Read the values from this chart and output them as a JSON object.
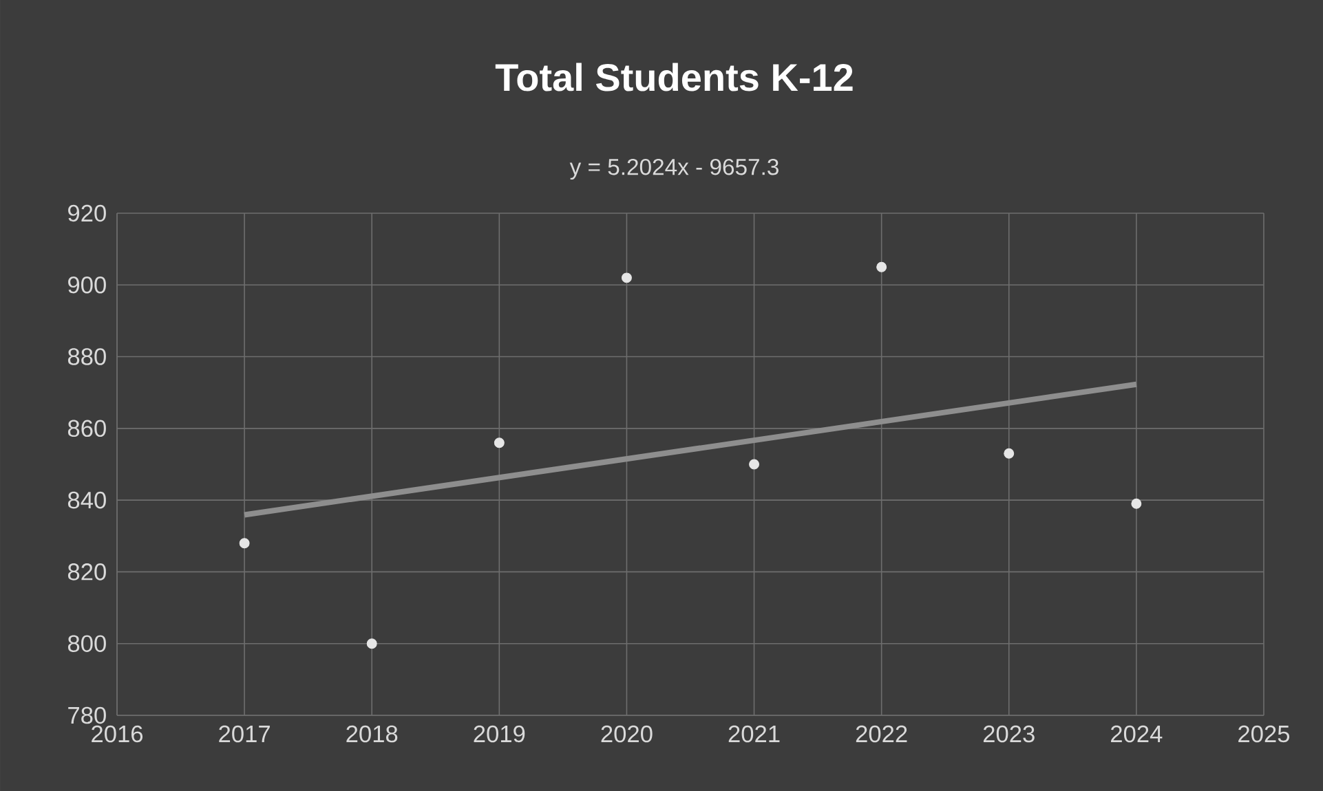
{
  "chart_data": {
    "type": "scatter",
    "title": "Total Students K-12",
    "annotations": [
      "y = 5.2024x - 9657.3"
    ],
    "x": [
      2017,
      2018,
      2019,
      2020,
      2021,
      2022,
      2023,
      2024
    ],
    "series": [
      {
        "color": "#e6e6e6",
        "marker": "circle",
        "values": [
          828,
          800,
          856,
          902,
          850,
          905,
          853,
          839
        ]
      },
      {
        "type": "line",
        "color": "#8e8e8e",
        "marker": "none",
        "x": [
          2017,
          2024
        ],
        "values": [
          835.9,
          872.3
        ]
      }
    ],
    "xlim": [
      2016,
      2025
    ],
    "ylim": [
      780,
      920
    ],
    "xticks": [
      2016,
      2017,
      2018,
      2019,
      2020,
      2021,
      2022,
      2023,
      2024,
      2025
    ],
    "yticks": [
      780,
      800,
      820,
      840,
      860,
      880,
      900,
      920
    ],
    "grid": true
  }
}
